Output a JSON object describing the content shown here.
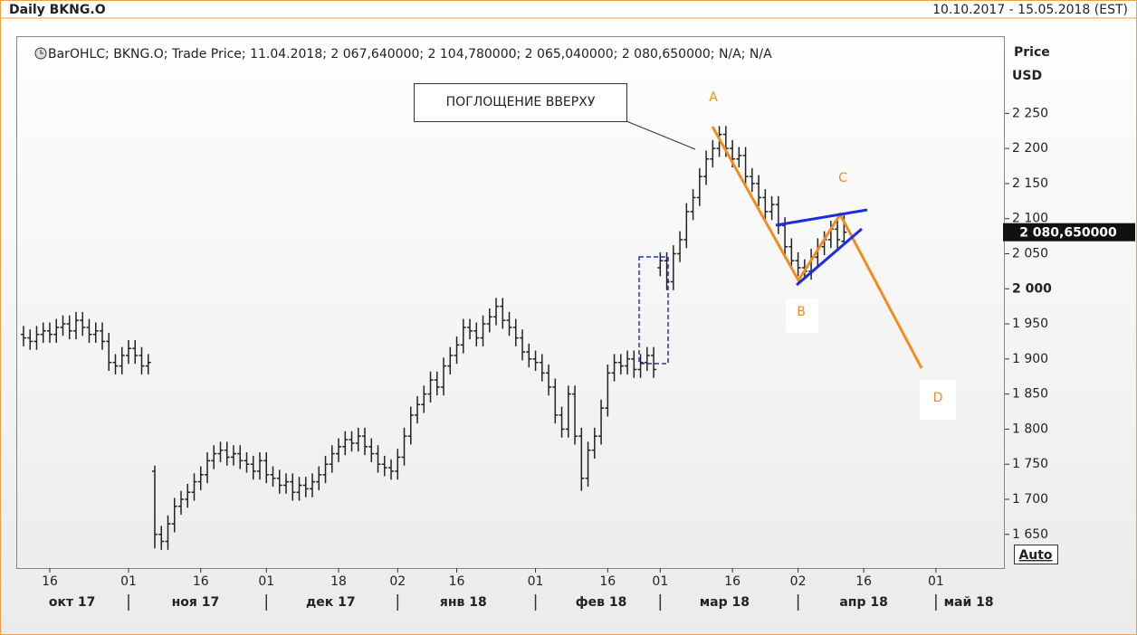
{
  "chart_data": {
    "type": "ohlc",
    "title": "Daily BKNG.O",
    "subtitle": "10.10.2017 - 15.05.2018 (EST)",
    "legend_text": "BarOHLC; BKNG.O; Trade Price; 11.04.2018; 2 067,640000; 2 104,780000; 2 065,040000; 2 080,650000; N/A; N/A",
    "y_label": "Price",
    "y_unit": "USD",
    "last_price": 2080.65,
    "last_price_label": "2 080,650000",
    "auto_button": "Auto",
    "annotation_box": "ПОГЛОЩЕНИЕ ВВЕРХУ",
    "annotation_points": [
      "A",
      "B",
      "C",
      "D"
    ],
    "color": "#222222",
    "xlim": [
      -1.1,
      149.5
    ],
    "ylim": [
      1602,
      2360
    ],
    "yticks": [
      {
        "value": 1650,
        "label": "1 650"
      },
      {
        "value": 1700,
        "label": "1 700"
      },
      {
        "value": 1750,
        "label": "1 750"
      },
      {
        "value": 1800,
        "label": "1 800"
      },
      {
        "value": 1850,
        "label": "1 850"
      },
      {
        "value": 1900,
        "label": "1 900"
      },
      {
        "value": 1950,
        "label": "1 950"
      },
      {
        "value": 2000,
        "label": "2 000"
      },
      {
        "value": 2050,
        "label": "2 050"
      },
      {
        "value": 2100,
        "label": "2 100"
      },
      {
        "value": 2150,
        "label": "2 150"
      },
      {
        "value": 2200,
        "label": "2 200"
      },
      {
        "value": 2250,
        "label": "2 250"
      }
    ],
    "xticks": [
      {
        "value": 4,
        "label": "16"
      },
      {
        "value": 16,
        "label": "01"
      },
      {
        "value": 27,
        "label": "16"
      },
      {
        "value": 37,
        "label": "01"
      },
      {
        "value": 48,
        "label": "18"
      },
      {
        "value": 57,
        "label": "02"
      },
      {
        "value": 66,
        "label": "16"
      },
      {
        "value": 78,
        "label": "01"
      },
      {
        "value": 89,
        "label": "16"
      },
      {
        "value": 97,
        "label": "01"
      },
      {
        "value": 108,
        "label": "16"
      },
      {
        "value": 118,
        "label": "02"
      },
      {
        "value": 128,
        "label": "16"
      },
      {
        "value": 139,
        "label": "01"
      }
    ],
    "month_ticks": [
      {
        "value": 7.4,
        "label": "окт 17"
      },
      {
        "value": 26.2,
        "label": "ноя 17"
      },
      {
        "value": 46.8,
        "label": "дек 17"
      },
      {
        "value": 67,
        "label": "янв 18"
      },
      {
        "value": 88,
        "label": "фев 18"
      },
      {
        "value": 106.8,
        "label": "мар 18"
      },
      {
        "value": 128,
        "label": "апр 18"
      },
      {
        "value": 144,
        "label": "май 18"
      }
    ],
    "open": [
      1935,
      1930,
      1925,
      1935,
      1940,
      1935,
      1945,
      1950,
      1940,
      1955,
      1945,
      1935,
      1940,
      1925,
      1895,
      1890,
      1905,
      1915,
      1905,
      1890,
      1740,
      1650,
      1640,
      1665,
      1690,
      1700,
      1710,
      1725,
      1735,
      1755,
      1765,
      1770,
      1760,
      1765,
      1755,
      1750,
      1740,
      1755,
      1735,
      1730,
      1720,
      1725,
      1710,
      1720,
      1715,
      1725,
      1735,
      1750,
      1765,
      1775,
      1785,
      1780,
      1790,
      1775,
      1765,
      1750,
      1745,
      1740,
      1760,
      1790,
      1820,
      1835,
      1850,
      1870,
      1860,
      1890,
      1905,
      1920,
      1945,
      1940,
      1930,
      1950,
      1960,
      1975,
      1955,
      1945,
      1930,
      1910,
      1900,
      1895,
      1880,
      1860,
      1820,
      1800,
      1850,
      1790,
      1730,
      1770,
      1790,
      1830,
      1880,
      1895,
      1890,
      1900,
      1885,
      1895,
      1905,
      2030,
      2040,
      2010,
      2050,
      2070,
      2110,
      2130,
      2160,
      2185,
      2200,
      2220,
      2200,
      2185,
      2190,
      2160,
      2150,
      2130,
      2110,
      2120,
      2090,
      2060,
      2040,
      2030,
      2025,
      2045,
      2060,
      2070,
      2085,
      2067.64
    ],
    "high": [
      1947,
      1942,
      1947,
      1952,
      1952,
      1957,
      1962,
      1962,
      1967,
      1967,
      1957,
      1952,
      1952,
      1937,
      1907,
      1917,
      1927,
      1927,
      1917,
      1907,
      1748,
      1662,
      1677,
      1702,
      1712,
      1722,
      1737,
      1747,
      1767,
      1777,
      1782,
      1782,
      1777,
      1777,
      1767,
      1762,
      1767,
      1767,
      1747,
      1742,
      1737,
      1737,
      1732,
      1732,
      1737,
      1747,
      1762,
      1777,
      1787,
      1797,
      1797,
      1802,
      1802,
      1787,
      1777,
      1762,
      1757,
      1772,
      1802,
      1832,
      1847,
      1862,
      1882,
      1882,
      1902,
      1917,
      1932,
      1957,
      1957,
      1952,
      1962,
      1972,
      1987,
      1987,
      1967,
      1957,
      1942,
      1922,
      1912,
      1907,
      1892,
      1872,
      1832,
      1862,
      1862,
      1802,
      1782,
      1802,
      1842,
      1892,
      1907,
      1907,
      1912,
      1912,
      1907,
      1917,
      1917,
      2052,
      2052,
      2062,
      2082,
      2122,
      2142,
      2172,
      2197,
      2212,
      2232,
      2232,
      2212,
      2202,
      2202,
      2172,
      2162,
      2142,
      2132,
      2132,
      2102,
      2072,
      2052,
      2042,
      2057,
      2072,
      2082,
      2097,
      2097,
      2104.78
    ],
    "low": [
      1918,
      1913,
      1913,
      1923,
      1923,
      1923,
      1933,
      1928,
      1928,
      1933,
      1923,
      1923,
      1913,
      1883,
      1878,
      1878,
      1893,
      1893,
      1878,
      1878,
      1630,
      1628,
      1628,
      1653,
      1678,
      1688,
      1698,
      1713,
      1723,
      1743,
      1753,
      1748,
      1748,
      1743,
      1738,
      1728,
      1728,
      1723,
      1718,
      1708,
      1708,
      1698,
      1698,
      1703,
      1703,
      1713,
      1723,
      1738,
      1753,
      1763,
      1768,
      1768,
      1763,
      1753,
      1738,
      1733,
      1728,
      1728,
      1748,
      1778,
      1808,
      1823,
      1838,
      1848,
      1848,
      1878,
      1893,
      1908,
      1928,
      1918,
      1918,
      1938,
      1948,
      1943,
      1933,
      1918,
      1898,
      1888,
      1883,
      1868,
      1848,
      1808,
      1788,
      1788,
      1778,
      1712,
      1718,
      1758,
      1778,
      1818,
      1868,
      1878,
      1878,
      1873,
      1873,
      1883,
      1873,
      2018,
      1998,
      1998,
      2038,
      2058,
      2098,
      2118,
      2148,
      2173,
      2188,
      2188,
      2173,
      2173,
      2148,
      2138,
      2118,
      2098,
      2098,
      2078,
      2048,
      2028,
      2018,
      2013,
      2013,
      2033,
      2048,
      2058,
      2058,
      2065.04
    ],
    "close": [
      1930,
      1925,
      1935,
      1940,
      1935,
      1945,
      1950,
      1940,
      1955,
      1945,
      1935,
      1940,
      1925,
      1895,
      1890,
      1905,
      1915,
      1905,
      1890,
      1895,
      1650,
      1640,
      1665,
      1690,
      1700,
      1710,
      1725,
      1735,
      1755,
      1765,
      1770,
      1760,
      1765,
      1755,
      1750,
      1740,
      1755,
      1735,
      1730,
      1720,
      1725,
      1710,
      1720,
      1715,
      1725,
      1735,
      1750,
      1765,
      1775,
      1785,
      1780,
      1790,
      1775,
      1765,
      1750,
      1745,
      1740,
      1760,
      1790,
      1820,
      1835,
      1850,
      1870,
      1860,
      1890,
      1905,
      1920,
      1945,
      1940,
      1930,
      1950,
      1960,
      1975,
      1955,
      1945,
      1930,
      1910,
      1900,
      1895,
      1880,
      1860,
      1820,
      1800,
      1850,
      1790,
      1730,
      1770,
      1790,
      1830,
      1880,
      1895,
      1890,
      1900,
      1885,
      1895,
      1905,
      1885,
      2040,
      2010,
      2050,
      2070,
      2110,
      2130,
      2160,
      2185,
      2200,
      2220,
      2200,
      2185,
      2190,
      2160,
      2150,
      2130,
      2110,
      2120,
      2090,
      2060,
      2040,
      2030,
      2025,
      2045,
      2060,
      2070,
      2085,
      2070,
      2080.65
    ]
  }
}
